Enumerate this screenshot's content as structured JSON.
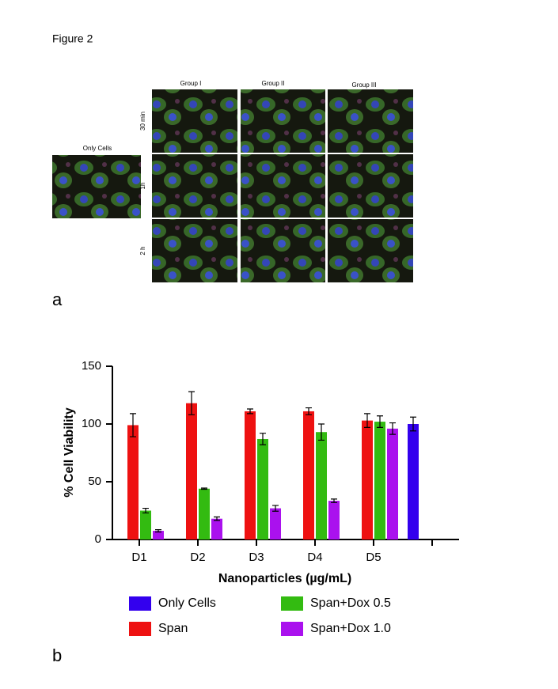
{
  "figure_title": "Figure 2",
  "panel_a": {
    "label": "a",
    "only_cells": "Only Cells",
    "columns": [
      "Group I",
      "Group II",
      "Group III"
    ],
    "rows": [
      "30 min",
      "1h",
      "2 h"
    ]
  },
  "panel_b": {
    "label": "b"
  },
  "chart_data": {
    "type": "bar",
    "ylabel": "% Cell Viability",
    "xlabel": "Nanoparticles (µg/mL)",
    "categories": [
      "D1",
      "D2",
      "D3",
      "D4",
      "D5",
      null
    ],
    "series": [
      {
        "name": "Only Cells",
        "color": "#3300ee",
        "values": [
          null,
          null,
          null,
          null,
          null,
          100
        ],
        "errors": [
          null,
          null,
          null,
          null,
          null,
          6
        ]
      },
      {
        "name": "Span",
        "color": "#ee1111",
        "values": [
          99,
          118,
          111,
          111,
          103,
          null
        ],
        "errors": [
          10,
          10,
          2,
          3,
          6,
          null
        ]
      },
      {
        "name": "Span+Dox 0.5",
        "color": "#33bb11",
        "values": [
          25,
          44,
          87,
          93,
          102,
          null
        ],
        "errors": [
          2,
          0.5,
          5,
          7,
          5,
          null
        ]
      },
      {
        "name": "Span+Dox 1.0",
        "color": "#aa11ee",
        "values": [
          7.5,
          18,
          27,
          33.5,
          96,
          null
        ],
        "errors": [
          1,
          1.5,
          2.5,
          1.5,
          5,
          null
        ]
      }
    ],
    "ylim": [
      0,
      150
    ],
    "yticks": [
      0,
      50,
      100,
      150
    ],
    "grid": false
  }
}
